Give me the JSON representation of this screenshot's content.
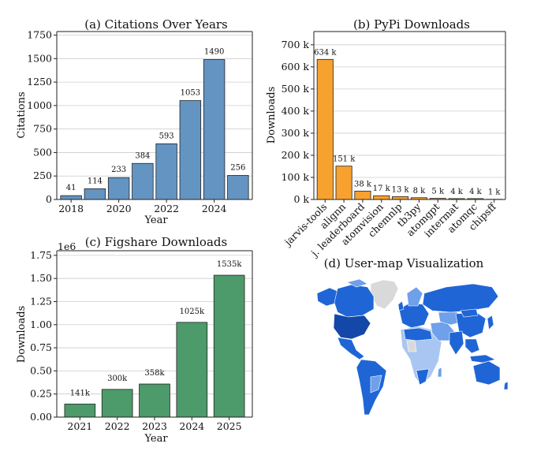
{
  "chart_data": [
    {
      "type": "bar",
      "title": "(a) Citations Over Years",
      "xlabel": "Year",
      "ylabel": "Citations",
      "x": [
        2018,
        2019,
        2020,
        2021,
        2022,
        2023,
        2024,
        2025
      ],
      "values": [
        41,
        114,
        233,
        384,
        593,
        1053,
        1490,
        256
      ],
      "data_labels": [
        "41",
        "114",
        "233",
        "384",
        "593",
        "1053",
        "1490",
        "256"
      ],
      "xticks": [
        2018,
        2020,
        2022,
        2024
      ],
      "xtick_labels": [
        "2018",
        "2020",
        "2022",
        "2024"
      ],
      "yticks": [
        0,
        250,
        500,
        750,
        1000,
        1250,
        1500,
        1750
      ],
      "ytick_labels": [
        "0",
        "250",
        "500",
        "750",
        "1000",
        "1250",
        "1500",
        "1750"
      ],
      "ylim": [
        0,
        1788
      ],
      "grid": "horizontal",
      "color": "#6494c1"
    },
    {
      "type": "bar",
      "title": "(b) PyPi Downloads",
      "xlabel": "",
      "ylabel": "Downloads",
      "categories": [
        "jarvis-tools",
        "alignn",
        "j. leaderboard",
        "atomvision",
        "chemnlp",
        "tb3py",
        "atomgpt",
        "intermat",
        "atomqc",
        "chipsff"
      ],
      "values": [
        634,
        151,
        38,
        17,
        13,
        8,
        5,
        4,
        4,
        1
      ],
      "data_labels": [
        "634 k",
        "151 k",
        "38 k",
        "17 k",
        "13 k",
        "8 k",
        "5 k",
        "4 k",
        "4 k",
        "1 k"
      ],
      "yticks": [
        0,
        100,
        200,
        300,
        400,
        500,
        600,
        700
      ],
      "ytick_labels": [
        "0 k",
        "100 k",
        "200 k",
        "300 k",
        "400 k",
        "500 k",
        "600 k",
        "700 k"
      ],
      "ylim": [
        0,
        760
      ],
      "grid": "horizontal",
      "color": "#f7a12f"
    },
    {
      "type": "bar",
      "title": "(c) Figshare Downloads",
      "xlabel": "Year",
      "ylabel": "Downloads",
      "scale_label": "1e6",
      "categories": [
        "2021",
        "2022",
        "2023",
        "2024",
        "2025"
      ],
      "values": [
        0.141,
        0.3,
        0.358,
        1.025,
        1.535
      ],
      "data_labels": [
        "141k",
        "300k",
        "358k",
        "1025k",
        "1535k"
      ],
      "yticks": [
        0,
        0.25,
        0.5,
        0.75,
        1.0,
        1.25,
        1.5,
        1.75
      ],
      "ytick_labels": [
        "0.00",
        "0.25",
        "0.50",
        "0.75",
        "1.00",
        "1.25",
        "1.50",
        "1.75"
      ],
      "ylim": [
        0,
        1.8
      ],
      "grid": "horizontal",
      "color": "#4d9a6a"
    }
  ],
  "map": {
    "title": "(d) User-map Visualization",
    "colors": {
      "dark": "#1448a8",
      "mid": "#1f65d6",
      "light": "#6fa0ea",
      "pale": "#a9c6f2",
      "none": "#d9d9d9"
    }
  }
}
